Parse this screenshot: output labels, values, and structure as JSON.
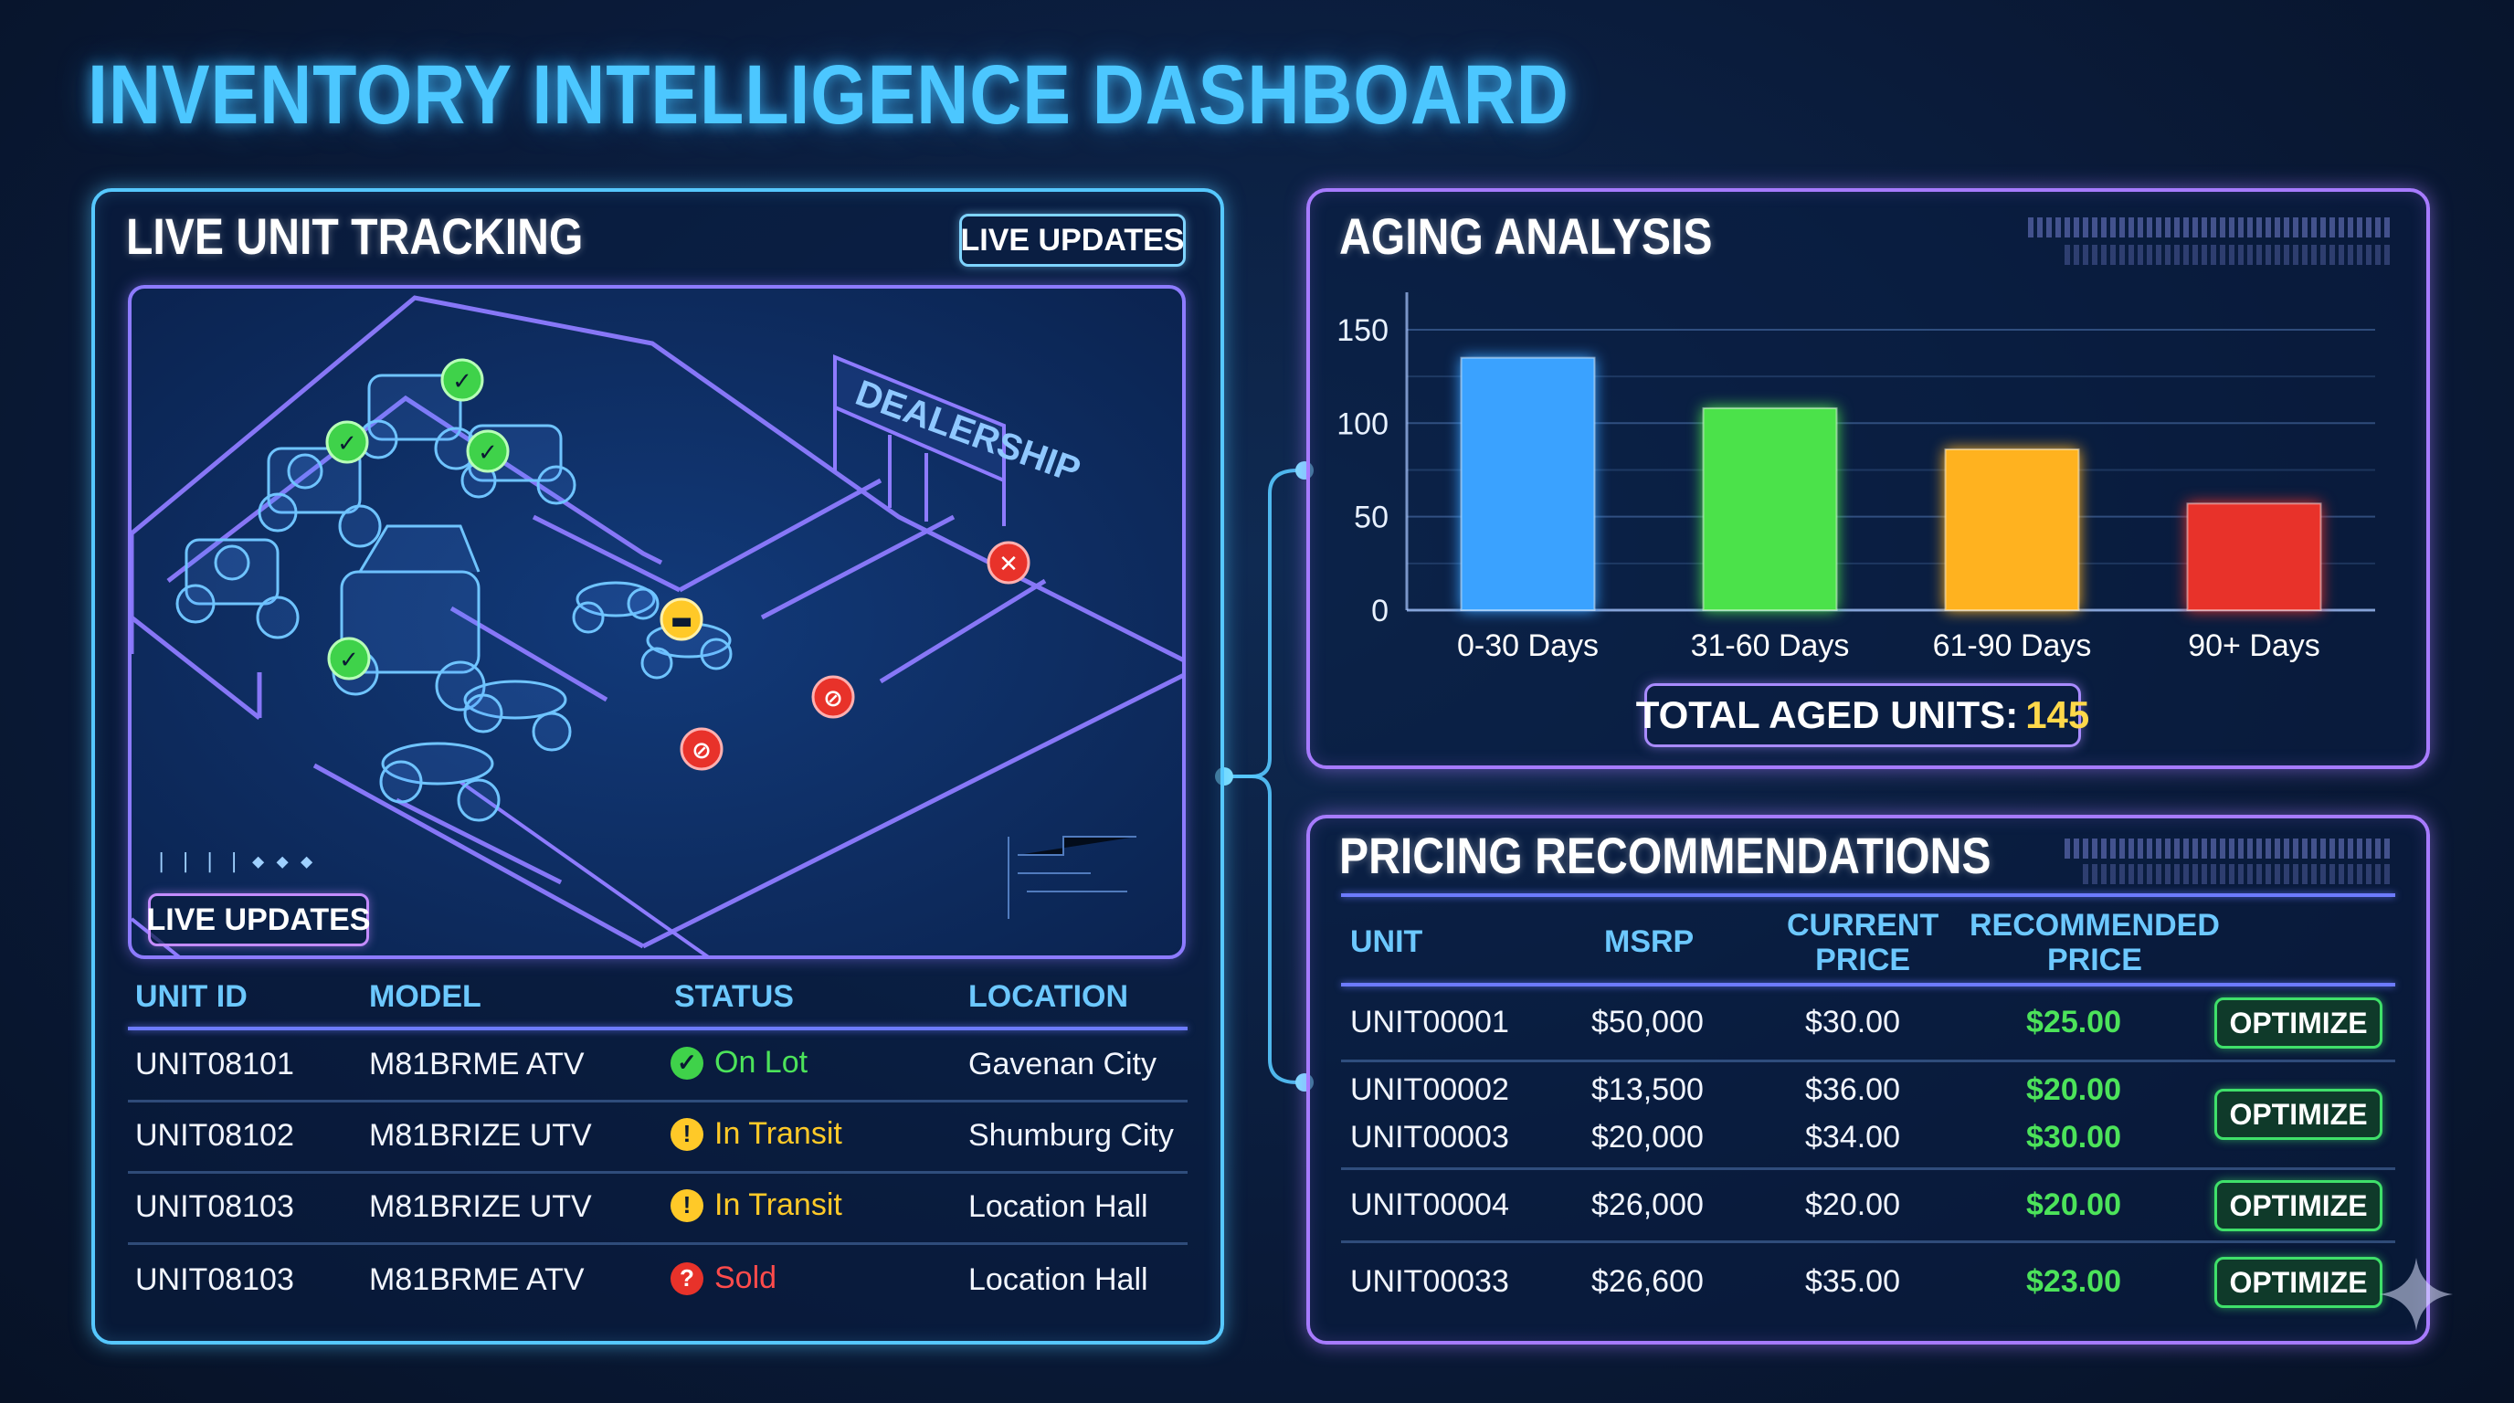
{
  "page": {
    "title": "INVENTORY INTELLIGENCE DASHBOARD"
  },
  "tracking": {
    "title": "LIVE UNIT TRACKING",
    "live_badge_top": "LIVE UPDATES",
    "live_badge_map": "LIVE UPDATES",
    "map": {
      "sign_text": "DEALERSHIP",
      "stream_text": "| | | | ◆ ◆ ◆"
    },
    "columns": [
      "UNIT ID",
      "MODEL",
      "STATUS",
      "LOCATION"
    ],
    "rows": [
      {
        "unit_id": "UNIT08101",
        "model": "M81BRME ATV",
        "status": "On Lot",
        "status_kind": "green",
        "location": "Gavenan City"
      },
      {
        "unit_id": "UNIT08102",
        "model": "M81BRIZE UTV",
        "status": "In Transit",
        "status_kind": "yellow",
        "location": "Shumburg City"
      },
      {
        "unit_id": "UNIT08103",
        "model": "M81BRIZE UTV",
        "status": "In Transit",
        "status_kind": "yellow",
        "location": "Location Hall"
      },
      {
        "unit_id": "UNIT08103",
        "model": "M81BRME ATV",
        "status": "Sold",
        "status_kind": "red",
        "location": "Location Hall"
      }
    ],
    "colors": {
      "green": "#4ce35a",
      "yellow": "#ffc928",
      "red": "#ff4b4b"
    }
  },
  "aging": {
    "title": "AGING ANALYSIS",
    "total_label": "TOTAL AGED UNITS:",
    "total_value": "145"
  },
  "chart_data": {
    "type": "bar",
    "title": "AGING ANALYSIS",
    "categories": [
      "0-30 Days",
      "31-60 Days",
      "61-90 Days",
      "90+ Days"
    ],
    "values": [
      135,
      108,
      86,
      57
    ],
    "colors": [
      "#3aa2ff",
      "#4be24a",
      "#ffb21f",
      "#e8322a"
    ],
    "yticks": [
      0,
      50,
      100,
      150
    ],
    "ylim": [
      0,
      170
    ],
    "xlabel": "",
    "ylabel": "",
    "grid": true
  },
  "pricing": {
    "title": "PRICING RECOMMENDATIONS",
    "columns": {
      "unit": "UNIT",
      "msrp": "MSRP",
      "current_1": "CURRENT",
      "current_2": "PRICE",
      "recommended_1": "RECOMMENDED",
      "recommended_2": "PRICE"
    },
    "rows": [
      {
        "unit": "UNIT00001",
        "msrp": "$50,000",
        "current": "$30.00",
        "recommended": "$25.00"
      },
      {
        "unit": "UNIT00002",
        "msrp": "$13,500",
        "current": "$36.00",
        "recommended": "$20.00"
      },
      {
        "unit": "UNIT00003",
        "msrp": "$20,000",
        "current": "$34.00",
        "recommended": "$30.00"
      },
      {
        "unit": "UNIT00004",
        "msrp": "$26,000",
        "current": "$20.00",
        "recommended": "$20.00"
      },
      {
        "unit": "UNIT00033",
        "msrp": "$26,600",
        "current": "$35.00",
        "recommended": "$23.00"
      }
    ],
    "action_label": "OPTIMIZE"
  }
}
